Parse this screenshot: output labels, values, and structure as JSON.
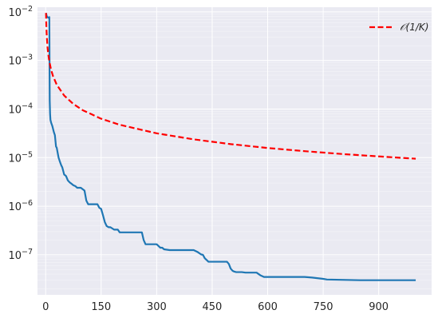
{
  "chart_data": {
    "type": "line",
    "title": "",
    "xlabel": "",
    "ylabel": "",
    "xlim": [
      -22,
      1043
    ],
    "ylim": [
      1.5e-08,
      0.0125
    ],
    "yscale": "log",
    "grid": true,
    "background": "#eaeaf2",
    "legend": {
      "position": "top-right",
      "entries": [
        {
          "label": "𝒪(1/K)",
          "series": 0
        }
      ]
    },
    "x_ticks": [
      0,
      150,
      300,
      450,
      600,
      750,
      900
    ],
    "x_tick_labels": [
      "0",
      "150",
      "300",
      "450",
      "600",
      "750",
      "900"
    ],
    "y_ticks": [
      1e-07,
      1e-06,
      1e-05,
      0.0001,
      0.001,
      0.01
    ],
    "y_tick_labels": [
      {
        "base": "10",
        "exp": "−7"
      },
      {
        "base": "10",
        "exp": "−6"
      },
      {
        "base": "10",
        "exp": "−5"
      },
      {
        "base": "10",
        "exp": "−4"
      },
      {
        "base": "10",
        "exp": "−3"
      },
      {
        "base": "10",
        "exp": "−2"
      }
    ],
    "series": [
      {
        "name": "𝒪(1/K)",
        "color": "#ff0000",
        "style": "dashed",
        "x": [
          1,
          2,
          3,
          5,
          7,
          10,
          15,
          20,
          30,
          50,
          75,
          100,
          150,
          200,
          300,
          400,
          500,
          600,
          700,
          800,
          900,
          1000
        ],
        "y": [
          0.0095,
          0.00475,
          0.00317,
          0.0019,
          0.00136,
          0.00095,
          0.000633,
          0.000475,
          0.000317,
          0.00019,
          0.000127,
          9.5e-05,
          6.33e-05,
          4.75e-05,
          3.17e-05,
          2.38e-05,
          1.9e-05,
          1.58e-05,
          1.36e-05,
          1.19e-05,
          1.06e-05,
          9.5e-06
        ]
      },
      {
        "name": "",
        "color": "#1f77b4",
        "style": "solid",
        "x": [
          1,
          3,
          5,
          7,
          10,
          11,
          12,
          13,
          15,
          18,
          22,
          25,
          28,
          30,
          33,
          35,
          38,
          42,
          45,
          50,
          55,
          60,
          65,
          70,
          75,
          80,
          85,
          95,
          105,
          110,
          115,
          120,
          125,
          140,
          145,
          150,
          155,
          160,
          165,
          170,
          175,
          185,
          195,
          200,
          205,
          215,
          230,
          250,
          255,
          260,
          265,
          270,
          275,
          290,
          300,
          310,
          315,
          320,
          335,
          350,
          360,
          400,
          410,
          420,
          425,
          430,
          440,
          470,
          480,
          490,
          495,
          500,
          505,
          510,
          515,
          530,
          540,
          560,
          570,
          580,
          590,
          620,
          680,
          690,
          700,
          720,
          750,
          760,
          850,
          900,
          1000
        ],
        "y": [
          0.0095,
          0.0082,
          0.0078,
          0.0076,
          0.0078,
          0.00015,
          8e-05,
          6e-05,
          5.2e-05,
          4.5e-05,
          3.4e-05,
          2.9e-05,
          1.7e-05,
          1.6e-05,
          1.2e-05,
          1e-05,
          8.5e-06,
          7e-06,
          6.3e-06,
          4.5e-06,
          4.2e-06,
          3.4e-06,
          3.1e-06,
          2.9e-06,
          2.7e-06,
          2.6e-06,
          2.4e-06,
          2.4e-06,
          2.1e-06,
          1.3e-06,
          1.1e-06,
          1.1e-06,
          1.1e-06,
          1.1e-06,
          9.3e-07,
          8.8e-07,
          6.5e-07,
          4.7e-07,
          3.9e-07,
          3.7e-07,
          3.7e-07,
          3.3e-07,
          3.3e-07,
          2.9e-07,
          2.9e-07,
          2.9e-07,
          2.9e-07,
          2.9e-07,
          2.9e-07,
          2.9e-07,
          2e-07,
          1.65e-07,
          1.65e-07,
          1.65e-07,
          1.65e-07,
          1.4e-07,
          1.4e-07,
          1.3e-07,
          1.25e-07,
          1.25e-07,
          1.25e-07,
          1.25e-07,
          1.15e-07,
          1.02e-07,
          1e-07,
          8.5e-08,
          7.2e-08,
          7.2e-08,
          7.2e-08,
          7.2e-08,
          6.5e-08,
          5.2e-08,
          4.7e-08,
          4.5e-08,
          4.4e-08,
          4.4e-08,
          4.3e-08,
          4.3e-08,
          4.3e-08,
          3.8e-08,
          3.5e-08,
          3.5e-08,
          3.5e-08,
          3.5e-08,
          3.5e-08,
          3.4e-08,
          3.2e-08,
          3.1e-08,
          3e-08,
          3e-08,
          3e-08
        ]
      }
    ]
  }
}
